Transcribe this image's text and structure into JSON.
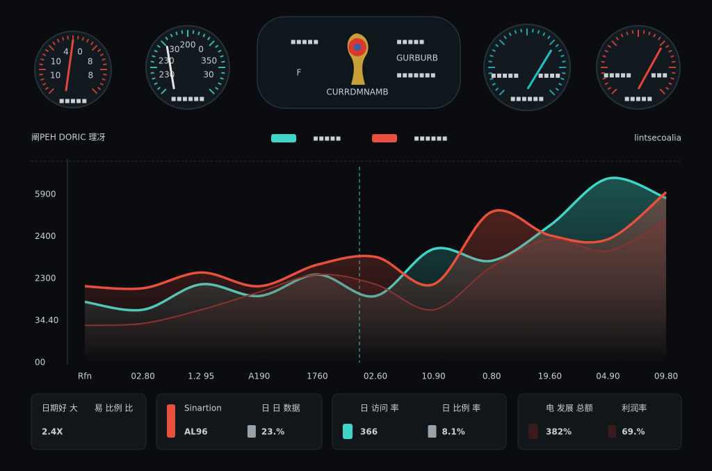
{
  "header": {
    "title": "阐PEH DORIC 理冴",
    "legend": [
      {
        "label": "▪▪▪▪▪",
        "color": "#3dd6c8"
      },
      {
        "label": "▪▪▪▪▪▪",
        "color": "#e8503e"
      }
    ],
    "note": "lintsecoalia"
  },
  "gauges": [
    {
      "labels": [
        "10",
        "10",
        "4",
        "0",
        "8",
        "8"
      ],
      "caption": "▪▪▪▪▪",
      "color": "#e0473a"
    },
    {
      "labels": [
        "230",
        "230",
        "30",
        "200",
        "0",
        "350",
        "30"
      ],
      "caption": "▪▪▪▪▪▪",
      "color": "#3dd6c8"
    },
    {
      "labels": [
        "▪▪▪▪▪",
        "▪▪▪▪"
      ],
      "caption": "▪▪▪▪▪▪",
      "color": "#1fc1c8"
    },
    {
      "labels": [
        "▪▪▪▪▪",
        "▪▪▪"
      ],
      "caption": "▪▪▪▪▪",
      "color": "#e8443a"
    }
  ],
  "center_panel": {
    "letter": "F",
    "logo_caption": "CURRDMNAMB",
    "left_text": "▪▪▪▪▪",
    "lines": [
      "▪▪▪▪▪",
      "GURBURB",
      "▪▪▪▪▪▪▪"
    ]
  },
  "chart_data": {
    "type": "line",
    "categories": [
      "Rfn",
      "02.80",
      "1.2 95",
      "A190",
      "1760",
      "02.60",
      "10.90",
      "0.80",
      "19.60",
      "04.90",
      "09.80"
    ],
    "y_axis_labels": [
      "5900",
      "2400",
      "2300",
      "34.40",
      "00"
    ],
    "ylim": [
      0,
      100
    ],
    "series": [
      {
        "color": "#3dd6c8",
        "values": [
          31,
          27,
          40,
          34,
          45,
          34,
          58,
          52,
          70,
          94,
          84
        ]
      },
      {
        "color": "#e8503e",
        "values": [
          39,
          38,
          46,
          39,
          50,
          54,
          40,
          77,
          65,
          63,
          87
        ]
      },
      {
        "color": "#8a3330",
        "values": [
          19,
          20,
          27,
          36,
          45,
          40,
          27,
          49,
          63,
          57,
          73
        ]
      }
    ]
  },
  "cards": [
    {
      "label": "日期好 大",
      "value": "2.4X",
      "label2": "易 比例 比",
      "value2": "",
      "color": "#bfc5c9"
    },
    {
      "label": "Sinartion",
      "value": "AL96",
      "label2": "日 日 数据",
      "value2": "23.%",
      "color": "#e8503e"
    },
    {
      "label": "日 访问 率",
      "value": "366",
      "label2": "日 比例 率",
      "value2": "8.1%",
      "color": "#3dd6c8"
    },
    {
      "label": "电 发展 总额",
      "value": "382%",
      "label2": "利润率",
      "value2": "69.%",
      "color": "#e8503e"
    }
  ]
}
